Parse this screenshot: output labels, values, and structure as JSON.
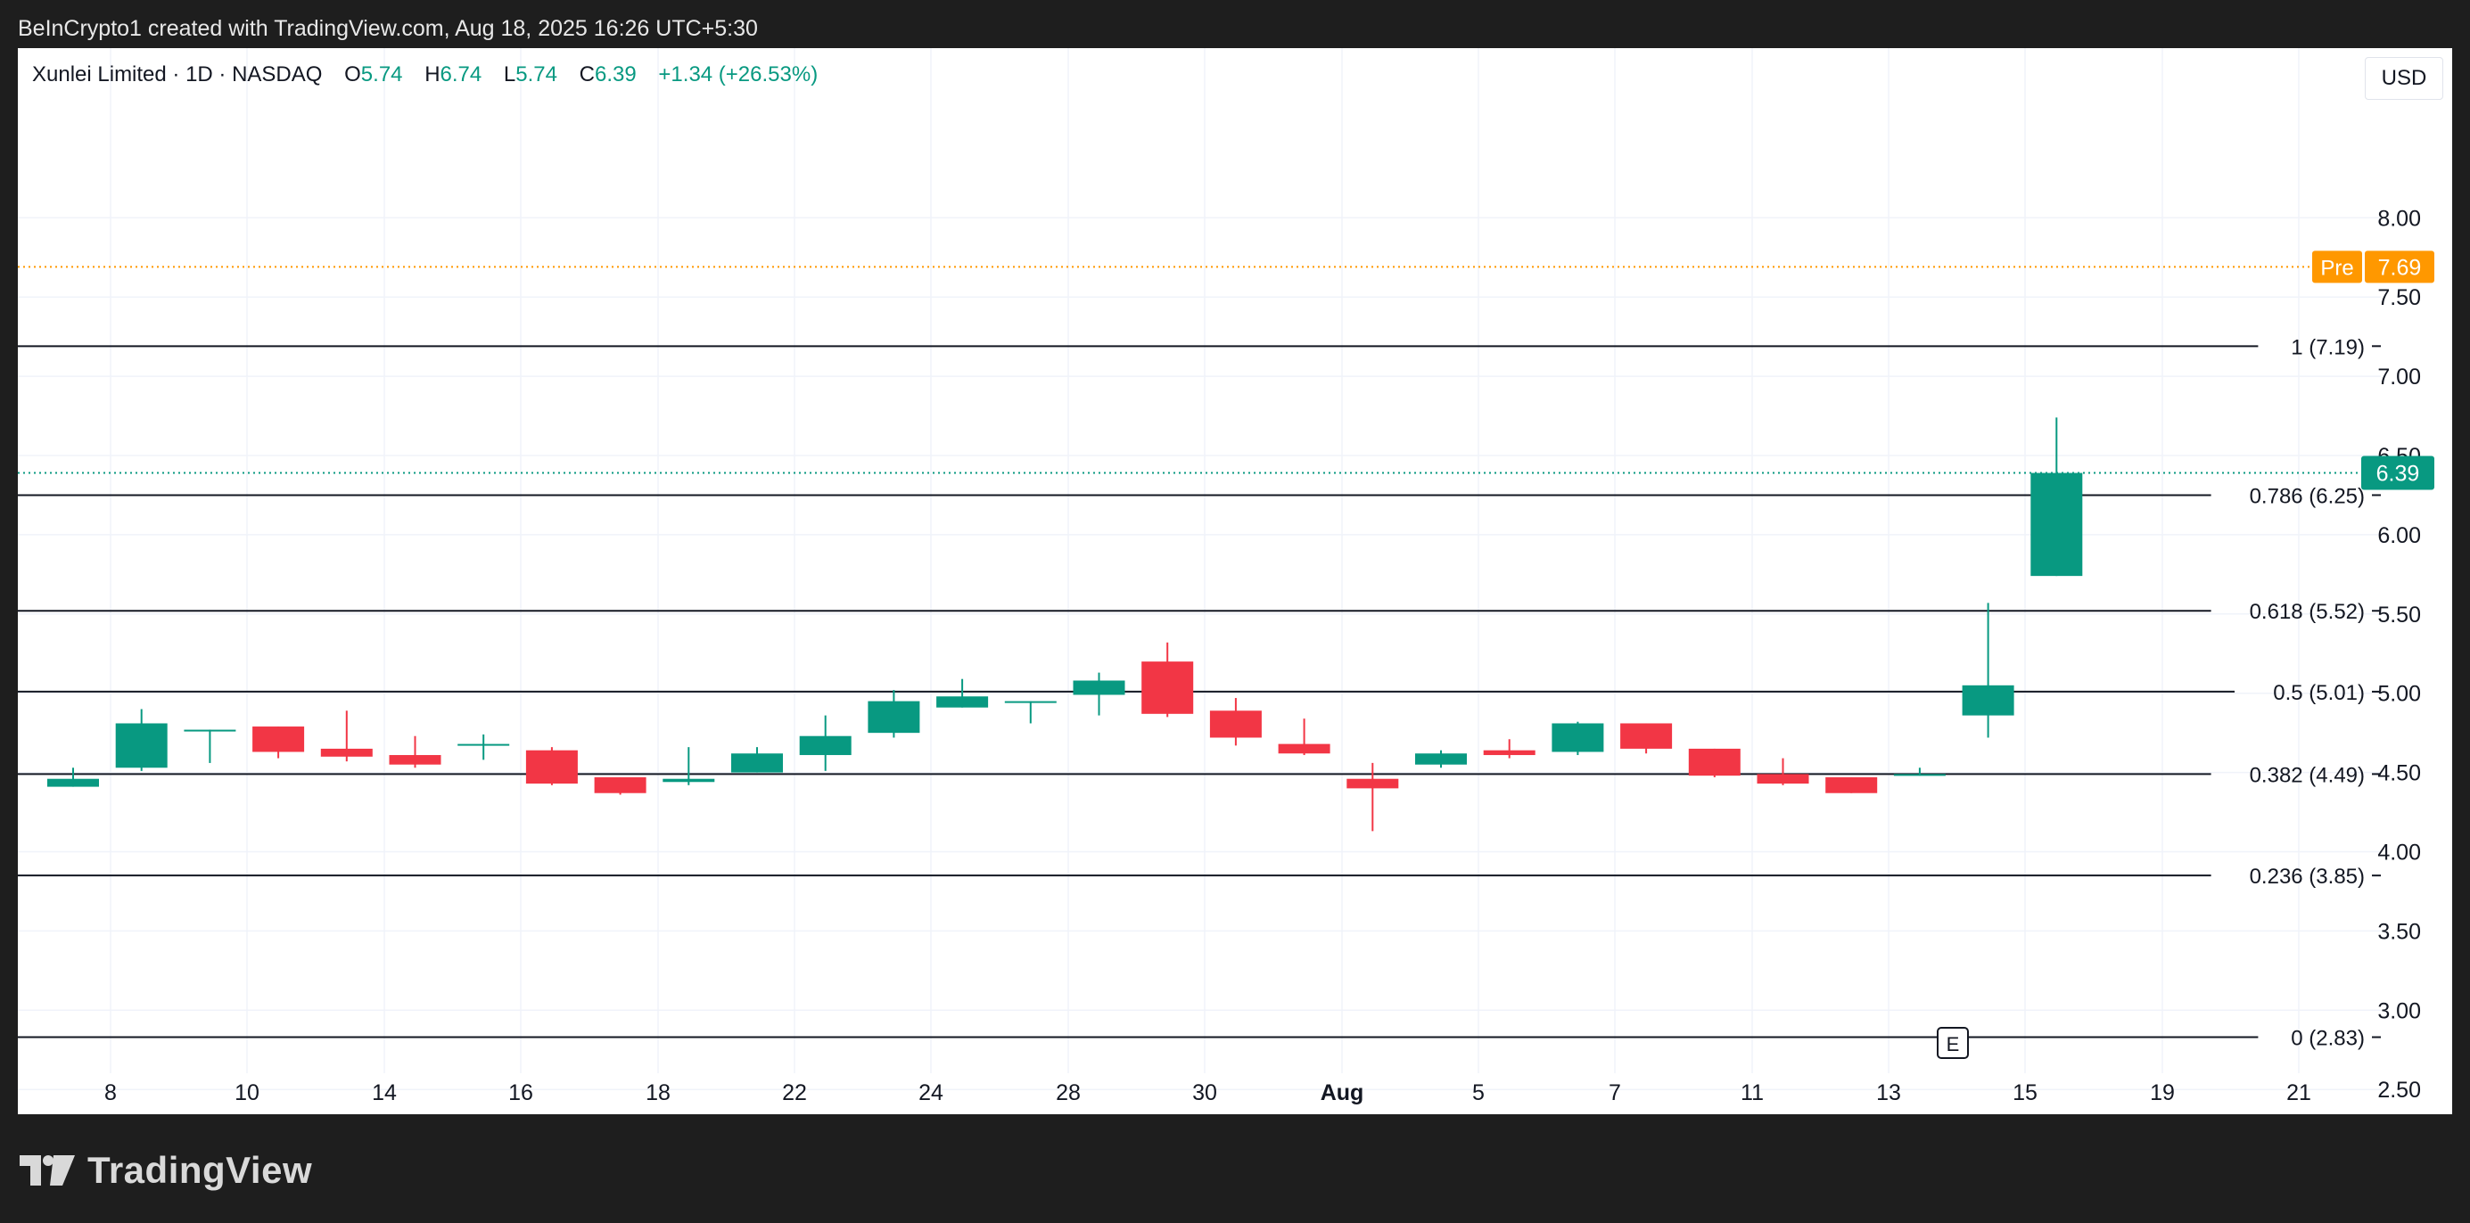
{
  "header": {
    "attribution": "BeInCrypto1 created with TradingView.com, Aug 18, 2025 16:26 UTC+5:30"
  },
  "legend": {
    "symbol": "Xunlei Limited · 1D · NASDAQ",
    "o_label": "O",
    "o_value": "5.74",
    "h_label": "H",
    "h_value": "6.74",
    "l_label": "L",
    "l_value": "5.74",
    "c_label": "C",
    "c_value": "6.39",
    "change": "+1.34 (+26.53%)"
  },
  "currency": "USD",
  "footer": {
    "brand": "TradingView"
  },
  "colors": {
    "up": "#089981",
    "down": "#f23645",
    "premarket": "#ff9800",
    "grid": "#f0f3fa",
    "fib_line": "#131722"
  },
  "chart_data": {
    "type": "candlestick",
    "ylim": [
      2.25,
      8.3
    ],
    "y_ticks": [
      2.5,
      3.0,
      3.5,
      4.0,
      4.5,
      5.0,
      5.5,
      6.0,
      6.5,
      7.0,
      7.5,
      8.0
    ],
    "y_tick_labels": [
      "2.50",
      "3.00",
      "3.50",
      "4.00",
      "4.50",
      "5.00",
      "5.50",
      "6.00",
      "6.50",
      "7.00",
      "7.50",
      "8.00"
    ],
    "x_ticks": [
      {
        "label": "8",
        "bold": false
      },
      {
        "label": "10",
        "bold": false
      },
      {
        "label": "14",
        "bold": false
      },
      {
        "label": "16",
        "bold": false
      },
      {
        "label": "18",
        "bold": false
      },
      {
        "label": "22",
        "bold": false
      },
      {
        "label": "24",
        "bold": false
      },
      {
        "label": "28",
        "bold": false
      },
      {
        "label": "30",
        "bold": false
      },
      {
        "label": "Aug",
        "bold": true
      },
      {
        "label": "5",
        "bold": false
      },
      {
        "label": "7",
        "bold": false
      },
      {
        "label": "11",
        "bold": false
      },
      {
        "label": "13",
        "bold": false
      },
      {
        "label": "15",
        "bold": false
      },
      {
        "label": "19",
        "bold": false
      },
      {
        "label": "21",
        "bold": false
      }
    ],
    "candles": [
      {
        "o": 4.41,
        "h": 4.53,
        "l": 4.41,
        "c": 4.46
      },
      {
        "o": 4.53,
        "h": 4.9,
        "l": 4.51,
        "c": 4.81
      },
      {
        "o": 4.77,
        "h": 4.77,
        "l": 4.56,
        "c": 4.77
      },
      {
        "o": 4.79,
        "h": 4.79,
        "l": 4.59,
        "c": 4.63
      },
      {
        "o": 4.65,
        "h": 4.89,
        "l": 4.57,
        "c": 4.6
      },
      {
        "o": 4.61,
        "h": 4.73,
        "l": 4.53,
        "c": 4.55
      },
      {
        "o": 4.67,
        "h": 4.74,
        "l": 4.58,
        "c": 4.68
      },
      {
        "o": 4.64,
        "h": 4.66,
        "l": 4.42,
        "c": 4.43
      },
      {
        "o": 4.47,
        "h": 4.47,
        "l": 4.36,
        "c": 4.37
      },
      {
        "o": 4.44,
        "h": 4.66,
        "l": 4.42,
        "c": 4.46
      },
      {
        "o": 4.5,
        "h": 4.66,
        "l": 4.5,
        "c": 4.62
      },
      {
        "o": 4.61,
        "h": 4.86,
        "l": 4.51,
        "c": 4.73
      },
      {
        "o": 4.75,
        "h": 5.02,
        "l": 4.72,
        "c": 4.95
      },
      {
        "o": 4.91,
        "h": 5.09,
        "l": 4.91,
        "c": 4.98
      },
      {
        "o": 4.95,
        "h": 4.95,
        "l": 4.81,
        "c": 4.95
      },
      {
        "o": 4.99,
        "h": 5.13,
        "l": 4.86,
        "c": 5.08
      },
      {
        "o": 5.2,
        "h": 5.32,
        "l": 4.85,
        "c": 4.87
      },
      {
        "o": 4.89,
        "h": 4.97,
        "l": 4.67,
        "c": 4.72
      },
      {
        "o": 4.68,
        "h": 4.84,
        "l": 4.61,
        "c": 4.62
      },
      {
        "o": 4.46,
        "h": 4.56,
        "l": 4.13,
        "c": 4.4
      },
      {
        "o": 4.55,
        "h": 4.64,
        "l": 4.53,
        "c": 4.62
      },
      {
        "o": 4.64,
        "h": 4.71,
        "l": 4.59,
        "c": 4.61
      },
      {
        "o": 4.63,
        "h": 4.82,
        "l": 4.61,
        "c": 4.81
      },
      {
        "o": 4.81,
        "h": 4.81,
        "l": 4.62,
        "c": 4.65
      },
      {
        "o": 4.65,
        "h": 4.65,
        "l": 4.47,
        "c": 4.48
      },
      {
        "o": 4.49,
        "h": 4.59,
        "l": 4.42,
        "c": 4.43
      },
      {
        "o": 4.47,
        "h": 4.47,
        "l": 4.37,
        "c": 4.37
      },
      {
        "o": 4.48,
        "h": 4.53,
        "l": 4.48,
        "c": 4.49
      },
      {
        "o": 4.86,
        "h": 5.57,
        "l": 4.72,
        "c": 5.05
      },
      {
        "o": 5.74,
        "h": 6.74,
        "l": 5.74,
        "c": 6.39
      }
    ],
    "fib_levels": [
      {
        "value": 7.19,
        "label": "1 (7.19)"
      },
      {
        "value": 6.25,
        "label": "0.786 (6.25)"
      },
      {
        "value": 5.52,
        "label": "0.618 (5.52)"
      },
      {
        "value": 5.01,
        "label": "0.5 (5.01)"
      },
      {
        "value": 4.49,
        "label": "0.382 (4.49)"
      },
      {
        "value": 3.85,
        "label": "0.236 (3.85)"
      },
      {
        "value": 2.83,
        "label": "0 (2.83)"
      }
    ],
    "premarket": {
      "label": "Pre",
      "value": 7.69,
      "value_label": "7.69"
    },
    "last_price": {
      "value": 6.39,
      "value_label": "6.39"
    },
    "earnings_marker": "E"
  }
}
